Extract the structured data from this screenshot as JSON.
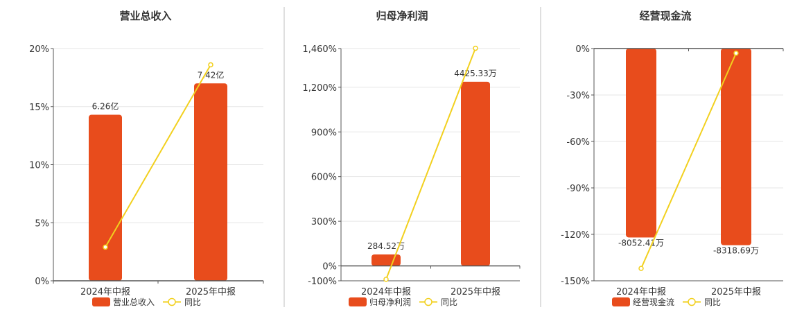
{
  "chart_data": [
    {
      "type": "bar",
      "title": "营业总收入",
      "categories": [
        "2024年中报",
        "2025年中报"
      ],
      "bar_labels": [
        "6.26亿",
        "7.42亿"
      ],
      "bar_values": [
        14.3,
        17.0
      ],
      "line_values": [
        2.9,
        18.6
      ],
      "ylim": [
        0,
        20
      ],
      "yticks": [
        0,
        5,
        10,
        15,
        20
      ],
      "ytick_labels": [
        "0%",
        "5%",
        "10%",
        "15%",
        "20%"
      ],
      "legend": [
        "营业总收入",
        "同比"
      ],
      "grid": true
    },
    {
      "type": "bar",
      "title": "归母净利润",
      "categories": [
        "2024年中报",
        "2025年中报"
      ],
      "bar_labels": [
        "284.52万",
        "4425.33万"
      ],
      "bar_values": [
        77,
        1237
      ],
      "line_values": [
        -90,
        1462
      ],
      "ylim": [
        -100,
        1460
      ],
      "yticks": [
        -100,
        0,
        300,
        600,
        900,
        1200,
        1460
      ],
      "ytick_labels": [
        "-100%",
        "0%",
        "300%",
        "600%",
        "900%",
        "1,200%",
        "1,460%"
      ],
      "legend": [
        "归母净利润",
        "同比"
      ],
      "grid": true
    },
    {
      "type": "bar",
      "title": "经营现金流",
      "categories": [
        "2024年中报",
        "2025年中报"
      ],
      "bar_labels": [
        "-8052.41万",
        "-8318.69万"
      ],
      "bar_values": [
        -122,
        -127
      ],
      "line_values": [
        -142,
        -3
      ],
      "ylim": [
        -150,
        0
      ],
      "yticks": [
        -150,
        -120,
        -90,
        -60,
        -30,
        0
      ],
      "ytick_labels": [
        "-150%",
        "-120%",
        "-90%",
        "-60%",
        "-30%",
        "0%"
      ],
      "legend": [
        "经营现金流",
        "同比"
      ],
      "grid": true
    }
  ],
  "colors": {
    "bar": "#e84c1c",
    "line": "#f2d01e",
    "axis": "#555555",
    "grid": "#e6e6e6",
    "divider": "#bfbfbf"
  }
}
